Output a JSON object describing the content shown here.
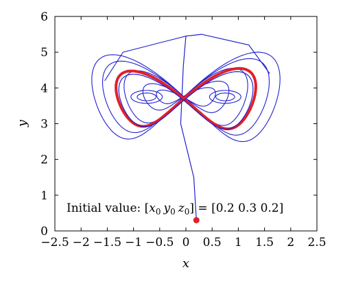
{
  "chart_data": {
    "type": "line",
    "title": "",
    "xlabel": "x",
    "ylabel": "y",
    "xlim": [
      -2.5,
      2.5
    ],
    "ylim": [
      0,
      6
    ],
    "xticks": [
      "−2.5",
      "−2",
      "−1.5",
      "−1",
      "−0.5",
      "0",
      "0.5",
      "1",
      "1.5",
      "2",
      "2.5"
    ],
    "yticks": [
      "0",
      "1",
      "2",
      "3",
      "4",
      "5",
      "6"
    ],
    "grid": false,
    "colors": {
      "trajectory": "#1f1fd0",
      "attractor": "#e0202a",
      "initial_point": "#e0202a"
    },
    "annotation": {
      "prefix": "Initial value: [",
      "x_var": "x",
      "x_sub": "0",
      "y_var": "y",
      "y_sub": "0",
      "z_var": "z",
      "z_sub": "0",
      "suffix": "] = [0.2 0.3 0.2]"
    },
    "initial_point": {
      "x": 0.2,
      "y": 0.3
    },
    "series": [
      {
        "role": "transient-trajectory",
        "shape": "figure-eight orbits with tail to initial point",
        "lobe_centers": [
          [
            -0.75,
            3.75
          ],
          [
            0.75,
            3.75
          ]
        ],
        "lobe_half_widths": [
          0.55,
          0.8,
          1.15,
          1.55,
          1.75
        ],
        "lobe_half_heights": [
          0.25,
          0.45,
          0.85,
          1.15,
          1.35
        ],
        "tail_top_y": 5.45
      },
      {
        "role": "limit-cycle",
        "shape": "figure-eight",
        "x_range": [
          -1.3,
          1.3
        ],
        "y_range": [
          2.8,
          4.6
        ],
        "lobe_centers": [
          [
            -0.75,
            3.7
          ],
          [
            0.75,
            3.7
          ]
        ]
      }
    ]
  }
}
